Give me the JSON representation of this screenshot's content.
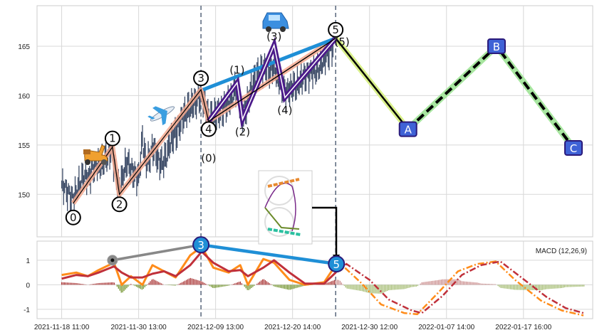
{
  "chart_data": [
    {
      "type": "line",
      "title": "",
      "panel": "price",
      "xlabel": "",
      "ylabel": "",
      "x_unit": "tick index (0 = first date tick)",
      "xlim": [
        -0.32,
        6.9
      ],
      "ylim": [
        145.7,
        169.1
      ],
      "yticks": [
        150,
        155,
        160,
        165
      ],
      "xtick_labels": [
        "2021-11-18 11:00",
        "2021-11-30 13:00",
        "2021-12-09 13:00",
        "2021-12-20 14:00",
        "2021-12-30 12:00",
        "2022-01-07 14:00",
        "2022-01-17 16:00"
      ],
      "grid": true,
      "price_series": {
        "x_start": 0,
        "x_step": 0.05,
        "close": [
          151,
          150.5,
          149.8,
          149.5,
          150.5,
          151.5,
          152,
          151.5,
          152.5,
          153,
          152.8,
          153.5,
          154,
          154.5,
          152,
          150.5,
          152,
          153.5,
          152.5,
          152,
          151.5,
          155.5,
          153,
          154,
          155,
          153.5,
          153,
          153.5,
          155,
          156,
          156.5,
          157.5,
          158,
          158.5,
          159,
          159.5,
          160.3,
          159.5,
          157.8,
          157.5,
          158,
          158.5,
          158.8,
          159.3,
          159.5,
          160.5,
          160,
          158,
          159,
          160.5,
          161.5,
          162,
          162.5,
          163,
          162.5,
          163,
          162,
          161,
          160.2,
          160.5,
          161,
          161,
          161.5,
          161.8,
          162,
          162.5,
          162.5,
          163,
          163.5,
          164,
          164.5,
          165.5
        ]
      },
      "main_waves": [
        {
          "label": "0",
          "x": 0.15,
          "y": 149.1
        },
        {
          "label": "1",
          "x": 0.66,
          "y": 154.8
        },
        {
          "label": "2",
          "x": 0.75,
          "y": 150.0
        },
        {
          "label": "3",
          "x": 1.81,
          "y": 160.6
        },
        {
          "label": "4",
          "x": 1.91,
          "y": 157.4
        },
        {
          "label": "5",
          "x": 3.56,
          "y": 165.8
        }
      ],
      "sub_waves": [
        {
          "label": "(0)",
          "x": 1.91,
          "y": 157.4
        },
        {
          "label": "(1)",
          "x": 2.28,
          "y": 161.3
        },
        {
          "label": "(2)",
          "x": 2.35,
          "y": 157.6
        },
        {
          "label": "(3)",
          "x": 2.76,
          "y": 165.1
        },
        {
          "label": "(4)",
          "x": 2.9,
          "y": 159.8
        },
        {
          "label": "(5)",
          "x": 3.56,
          "y": 165.8
        }
      ],
      "projection_waves": [
        {
          "label": "A",
          "x": 4.5,
          "y": 156.6
        },
        {
          "label": "B",
          "x": 5.65,
          "y": 165.0
        },
        {
          "label": "C",
          "x": 6.65,
          "y": 154.7
        }
      ],
      "divergence_line": {
        "from": "3",
        "to": "5"
      },
      "vertical_markers_x": [
        1.81,
        3.56
      ],
      "decorations": [
        "scooter-emoji",
        "airplane-emoji",
        "car-emoji",
        "roller-coaster-inset"
      ]
    },
    {
      "type": "line",
      "panel": "macd",
      "legend": "MACD (12,26,9)",
      "legend_position": "top-right",
      "ylim": [
        -1.38,
        1.78
      ],
      "yticks": [
        1,
        0,
        -1
      ],
      "grid": true,
      "macd": {
        "x": [
          0,
          0.19,
          0.34,
          0.48,
          0.68,
          0.78,
          0.9,
          1.05,
          1.18,
          1.33,
          1.48,
          1.67,
          1.82,
          1.97,
          2.17,
          2.32,
          2.42,
          2.62,
          2.76,
          2.96,
          3.16,
          3.41,
          3.56
        ],
        "y": [
          0.4,
          0.5,
          0.35,
          0.6,
          0.9,
          0.0,
          0.35,
          0.0,
          0.8,
          0.55,
          0.3,
          1.2,
          1.55,
          0.7,
          0.5,
          0.8,
          0.0,
          1.05,
          0.9,
          0.2,
          0.0,
          0.1,
          0.8
        ]
      },
      "signal": {
        "x": [
          0,
          0.19,
          0.34,
          0.48,
          0.68,
          0.78,
          0.9,
          1.05,
          1.18,
          1.33,
          1.48,
          1.67,
          1.82,
          1.97,
          2.17,
          2.32,
          2.42,
          2.62,
          2.76,
          2.96,
          3.16,
          3.41,
          3.56
        ],
        "y": [
          0.25,
          0.4,
          0.35,
          0.5,
          0.75,
          0.5,
          0.3,
          0.3,
          0.45,
          0.55,
          0.35,
          0.8,
          1.35,
          0.9,
          0.55,
          0.6,
          0.35,
          0.7,
          1.0,
          0.5,
          0.05,
          0.05,
          0.5
        ]
      },
      "macd_projection": {
        "x": [
          3.56,
          3.61,
          3.9,
          4.15,
          4.45,
          4.62,
          4.9,
          5.15,
          5.4,
          5.64,
          5.89,
          6.23,
          6.5,
          6.78
        ],
        "y": [
          0.8,
          0.9,
          0.05,
          -0.8,
          -1.15,
          -1.2,
          -0.3,
          0.55,
          0.85,
          0.95,
          0.2,
          -0.65,
          -1.05,
          -1.25
        ]
      },
      "signal_projection": {
        "x": [
          3.56,
          3.7,
          4.0,
          4.25,
          4.55,
          4.68,
          4.95,
          5.2,
          5.45,
          5.7,
          5.95,
          6.3,
          6.55,
          6.78
        ],
        "y": [
          0.5,
          0.85,
          0.2,
          -0.6,
          -1.05,
          -1.15,
          -0.45,
          0.4,
          0.8,
          0.95,
          0.35,
          -0.5,
          -0.95,
          -1.15
        ]
      },
      "markers": [
        {
          "label": "",
          "x": 0.66,
          "y": 1.0,
          "style": "gray"
        },
        {
          "label": "3",
          "x": 1.81,
          "y": 1.63,
          "style": "blue"
        },
        {
          "label": "5",
          "x": 3.57,
          "y": 0.85,
          "style": "blue"
        }
      ]
    }
  ],
  "colors": {
    "candle": "#3b4a66",
    "wave_highlight": "#f4a98f",
    "sub_wave": "#4b1a8a",
    "divergence": "#1f8fd6",
    "proj_highlight_1": "#d9f08a",
    "proj_highlight_2": "#a8e6a0",
    "proj_box": "#3f62d6",
    "macd": "#ff8c1a",
    "signal": "#c0303a",
    "hist_pos": "#a52a2a",
    "hist_neg": "#6b8e23",
    "hist_pos_future": "#c98a8a",
    "hist_neg_future": "#9fb86a",
    "grid": "#d8d8d8",
    "vline": "#56657a"
  }
}
